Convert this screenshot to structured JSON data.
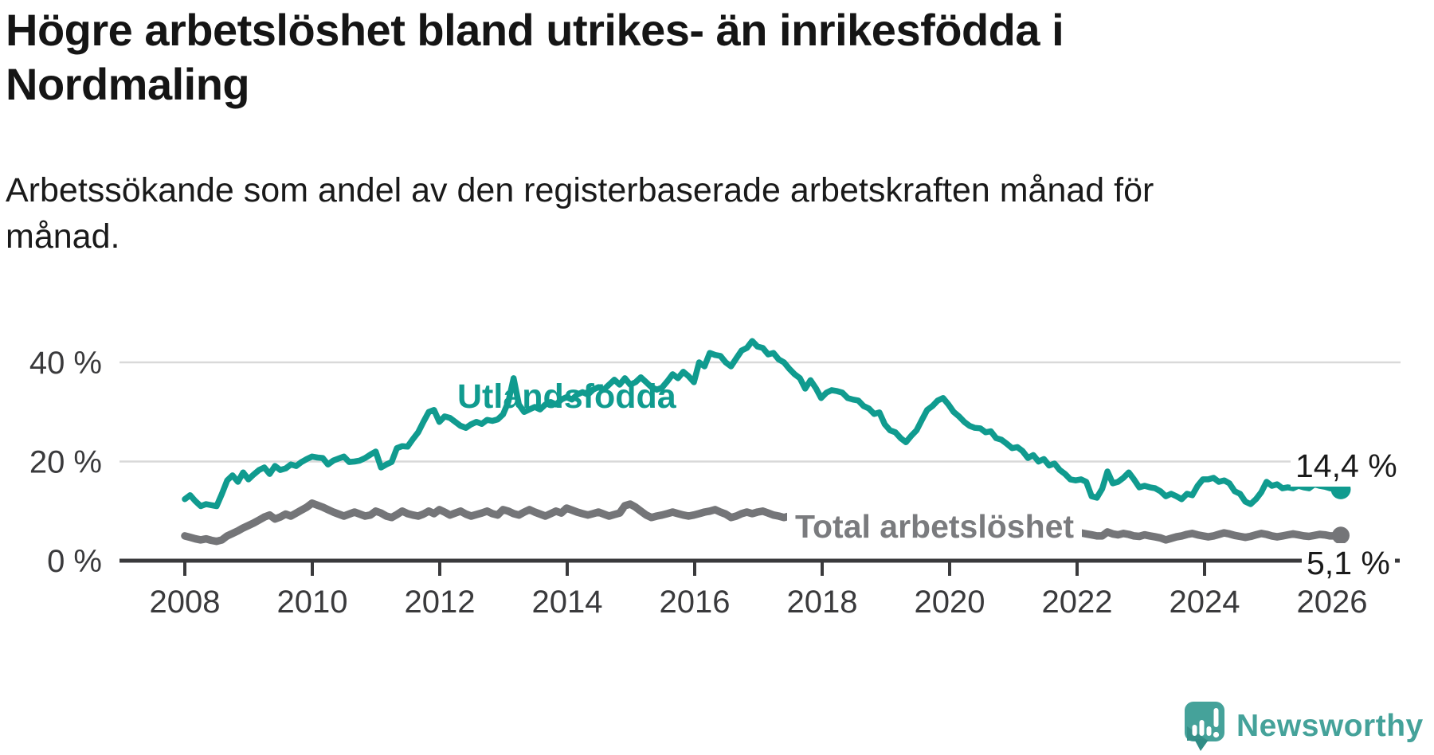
{
  "header": {
    "title_lines": [
      "Högre arbetslöshet bland utrikes- än inrikesfödda i",
      "Nordmaling"
    ],
    "subtitle_lines": [
      "Arbetssökande som andel av den registerbaserade arbetskraften månad för",
      "månad."
    ]
  },
  "chart_data": {
    "type": "line",
    "title": "Högre arbetslöshet bland utrikes- än inrikesfödda i Nordmaling",
    "subtitle": "Arbetssökande som andel av den registerbaserade arbetskraften månad för månad.",
    "x_unit": "month",
    "x_range": [
      "2008-01",
      "2026-03"
    ],
    "x_ticks": [
      2008,
      2010,
      2012,
      2014,
      2016,
      2018,
      2020,
      2022,
      2024,
      2026
    ],
    "y_ticks": [
      {
        "value": 0,
        "label": "0 %"
      },
      {
        "value": 20,
        "label": "20 %"
      },
      {
        "value": 40,
        "label": "40 %"
      }
    ],
    "ylim": [
      0,
      47
    ],
    "grid": "horizontal",
    "legend_position": "inline-labels",
    "colors": {
      "grid": "#d9d9d9",
      "axis": "#3a3a3c",
      "tick_text": "#3a3a3c"
    },
    "series": [
      {
        "name": "Utlandsfödda",
        "color": "#109b8f",
        "line_width": 7.5,
        "end_value": 14.4,
        "end_label": "14,4 %",
        "values": [
          12.4,
          13.2,
          12.0,
          11.0,
          11.4,
          11.2,
          11.0,
          13.5,
          16.2,
          17.2,
          15.9,
          17.8,
          16.4,
          17.4,
          18.3,
          18.8,
          17.5,
          19.1,
          18.3,
          18.6,
          19.4,
          19.1,
          19.9,
          20.5,
          21.0,
          20.8,
          20.7,
          19.4,
          20.2,
          20.6,
          21.0,
          19.9,
          20.0,
          20.2,
          20.7,
          21.4,
          22.0,
          18.8,
          19.4,
          19.9,
          22.7,
          23.1,
          23.0,
          24.5,
          25.9,
          28.0,
          30.0,
          30.4,
          28.0,
          29.1,
          28.8,
          28.0,
          27.2,
          26.8,
          27.5,
          28.0,
          27.6,
          28.4,
          28.2,
          28.5,
          29.5,
          32.0,
          36.8,
          31.5,
          30.0,
          30.5,
          31.0,
          30.5,
          31.5,
          32.0,
          31.5,
          32.5,
          33.0,
          32.5,
          33.5,
          34.0,
          33.5,
          34.5,
          35.0,
          34.5,
          35.5,
          36.5,
          35.5,
          36.8,
          35.5,
          36.0,
          37.0,
          36.0,
          35.0,
          34.5,
          34.9,
          36.2,
          37.6,
          36.8,
          38.1,
          37.2,
          36.0,
          40.0,
          39.2,
          41.9,
          41.5,
          41.3,
          40.0,
          39.2,
          40.8,
          42.4,
          42.9,
          44.3,
          43.2,
          42.9,
          41.6,
          41.9,
          40.6,
          40.0,
          38.7,
          37.6,
          36.8,
          34.7,
          36.4,
          34.8,
          32.8,
          33.9,
          34.4,
          34.2,
          33.9,
          32.8,
          32.5,
          32.3,
          31.2,
          30.7,
          29.6,
          29.9,
          27.5,
          26.3,
          25.9,
          24.7,
          23.9,
          25.2,
          26.3,
          28.4,
          30.4,
          31.2,
          32.3,
          32.8,
          31.5,
          30.0,
          29.1,
          28.0,
          27.2,
          26.8,
          26.7,
          25.9,
          26.1,
          24.7,
          24.4,
          23.6,
          22.7,
          22.9,
          22.1,
          20.7,
          21.3,
          20.0,
          20.5,
          19.2,
          19.6,
          18.3,
          17.5,
          16.4,
          16.2,
          16.4,
          15.9,
          13.0,
          12.7,
          14.5,
          18.0,
          15.6,
          15.9,
          16.7,
          17.8,
          16.4,
          14.8,
          15.1,
          14.8,
          14.6,
          14.0,
          13.0,
          13.5,
          13.0,
          12.4,
          13.5,
          13.2,
          15.1,
          16.4,
          16.4,
          16.7,
          15.9,
          16.2,
          15.6,
          14.0,
          13.5,
          11.9,
          11.4,
          12.4,
          13.8,
          15.9,
          15.1,
          15.4,
          14.6,
          14.8,
          14.6,
          15.1,
          14.8,
          14.6,
          15.4,
          15.1,
          14.9,
          14.6,
          14.5,
          14.4
        ]
      },
      {
        "name": "Total arbetslöshet",
        "color": "#747578",
        "line_width": 9.5,
        "end_value": 5.1,
        "end_label": "5,1 %",
        "values": [
          5.0,
          4.7,
          4.4,
          4.2,
          4.4,
          4.1,
          3.9,
          4.2,
          5.0,
          5.5,
          6.0,
          6.6,
          7.1,
          7.6,
          8.2,
          8.8,
          9.2,
          8.4,
          8.8,
          9.4,
          9.0,
          9.6,
          10.2,
          10.8,
          11.6,
          11.2,
          10.8,
          10.3,
          9.8,
          9.4,
          9.0,
          9.4,
          9.8,
          9.4,
          9.0,
          9.2,
          10.0,
          9.6,
          9.0,
          8.7,
          9.3,
          10.0,
          9.5,
          9.2,
          9.0,
          9.4,
          10.0,
          9.5,
          10.3,
          9.8,
          9.2,
          9.6,
          10.0,
          9.4,
          9.0,
          9.3,
          9.6,
          10.0,
          9.5,
          9.2,
          10.3,
          10.0,
          9.5,
          9.2,
          9.8,
          10.3,
          9.8,
          9.4,
          9.0,
          9.5,
          10.0,
          9.6,
          10.6,
          10.2,
          9.8,
          9.5,
          9.2,
          9.5,
          9.8,
          9.4,
          9.0,
          9.3,
          9.6,
          11.1,
          11.4,
          10.8,
          10.0,
          9.2,
          8.7,
          9.0,
          9.2,
          9.5,
          9.8,
          9.5,
          9.2,
          9.0,
          9.2,
          9.5,
          9.8,
          10.0,
          10.3,
          9.8,
          9.4,
          8.7,
          9.0,
          9.5,
          9.8,
          9.5,
          9.8,
          10.0,
          9.6,
          9.2,
          9.0,
          8.7,
          9.0,
          9.3,
          9.6,
          9.2,
          9.0,
          8.9,
          9.0,
          8.9,
          8.8,
          8.7,
          8.6,
          8.5,
          8.5,
          8.4,
          8.4,
          8.3,
          8.3,
          8.2,
          8.2,
          8.1,
          8.0,
          8.0,
          7.9,
          7.9,
          7.8,
          7.8,
          7.9,
          8.0,
          8.1,
          8.2,
          8.3,
          8.4,
          8.5,
          8.6,
          8.6,
          8.5,
          8.4,
          8.3,
          8.2,
          8.1,
          8.0,
          7.9,
          7.8,
          7.6,
          7.4,
          7.2,
          7.0,
          6.8,
          6.6,
          6.4,
          6.2,
          6.0,
          5.9,
          5.8,
          5.7,
          5.6,
          5.4,
          5.2,
          5.0,
          5.0,
          5.8,
          5.4,
          5.2,
          5.5,
          5.3,
          5.0,
          4.9,
          5.2,
          5.0,
          4.8,
          4.6,
          4.2,
          4.5,
          4.8,
          5.0,
          5.3,
          5.5,
          5.2,
          5.0,
          4.8,
          5.0,
          5.3,
          5.6,
          5.4,
          5.1,
          4.9,
          4.7,
          4.9,
          5.2,
          5.5,
          5.3,
          5.0,
          4.8,
          5.0,
          5.2,
          5.4,
          5.2,
          5.0,
          4.9,
          5.1,
          5.3,
          5.2,
          5.0,
          5.0,
          5.1
        ]
      }
    ]
  },
  "branding": {
    "name": "Newsworthy",
    "color": "#45a29a"
  }
}
